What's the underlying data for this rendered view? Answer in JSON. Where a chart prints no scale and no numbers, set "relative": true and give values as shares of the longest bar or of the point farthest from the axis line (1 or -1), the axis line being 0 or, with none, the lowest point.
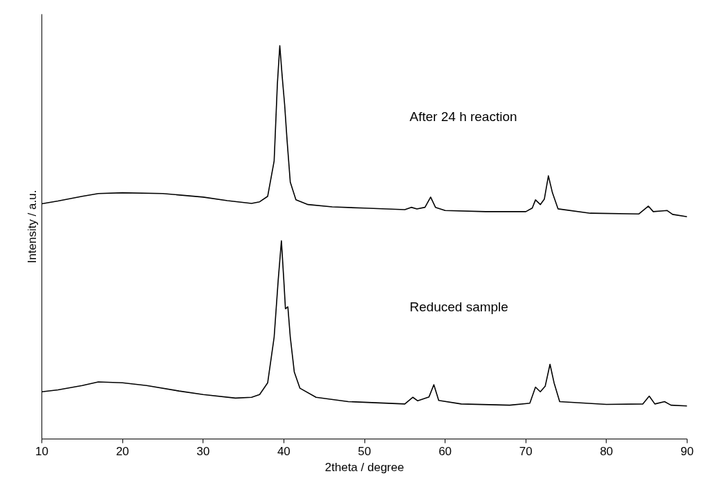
{
  "chart_data": {
    "type": "line",
    "relative": true,
    "xlabel": "2theta / degree",
    "ylabel": "Intensity / a.u.",
    "xlim": [
      10,
      90
    ],
    "xticks": [
      10,
      20,
      30,
      40,
      50,
      60,
      70,
      80,
      90
    ],
    "annotations": [
      "After 24 h reaction",
      "Reduced sample"
    ],
    "grid": false,
    "marker": "none",
    "line_style": "solid",
    "series": [
      {
        "color": "#000000",
        "x": [
          10,
          12,
          15,
          17,
          20,
          25,
          30,
          33,
          36,
          37,
          38,
          38.8,
          39.2,
          39.5,
          39.8,
          40.1,
          40.4,
          40.8,
          41.5,
          43,
          46,
          50,
          55,
          55.8,
          56.5,
          57.5,
          58.2,
          58.8,
          60,
          65,
          70,
          70.8,
          71.2,
          71.8,
          72.3,
          72.8,
          73.3,
          74,
          78,
          84,
          85.2,
          85.8,
          87,
          87.5,
          88.2,
          90
        ],
        "values": [
          0.598,
          0.605,
          0.617,
          0.624,
          0.626,
          0.624,
          0.615,
          0.606,
          0.599,
          0.603,
          0.617,
          0.707,
          0.903,
          1,
          0.921,
          0.85,
          0.76,
          0.653,
          0.608,
          0.596,
          0.59,
          0.587,
          0.583,
          0.589,
          0.585,
          0.589,
          0.615,
          0.589,
          0.581,
          0.578,
          0.578,
          0.587,
          0.608,
          0.596,
          0.61,
          0.669,
          0.626,
          0.585,
          0.574,
          0.572,
          0.592,
          0.578,
          0.58,
          0.581,
          0.571,
          0.565
        ]
      },
      {
        "color": "#000000",
        "x": [
          10,
          12,
          15,
          17,
          20,
          23,
          27,
          30,
          34,
          36,
          37,
          38,
          38.8,
          39.3,
          39.7,
          40.0,
          40.2,
          40.5,
          40.8,
          41.3,
          42,
          44,
          48,
          55,
          56,
          56.6,
          58,
          58.6,
          59.2,
          62,
          68,
          70.5,
          71.2,
          71.8,
          72.4,
          73,
          73.5,
          74.2,
          80,
          84.5,
          85.3,
          86,
          87.2,
          88,
          90
        ],
        "values": [
          0.12,
          0.125,
          0.136,
          0.145,
          0.143,
          0.136,
          0.122,
          0.113,
          0.104,
          0.106,
          0.113,
          0.143,
          0.259,
          0.403,
          0.504,
          0.403,
          0.331,
          0.336,
          0.259,
          0.17,
          0.129,
          0.106,
          0.095,
          0.089,
          0.106,
          0.097,
          0.107,
          0.138,
          0.098,
          0.089,
          0.086,
          0.091,
          0.132,
          0.12,
          0.134,
          0.19,
          0.143,
          0.095,
          0.088,
          0.089,
          0.109,
          0.089,
          0.095,
          0.086,
          0.084
        ]
      }
    ]
  }
}
